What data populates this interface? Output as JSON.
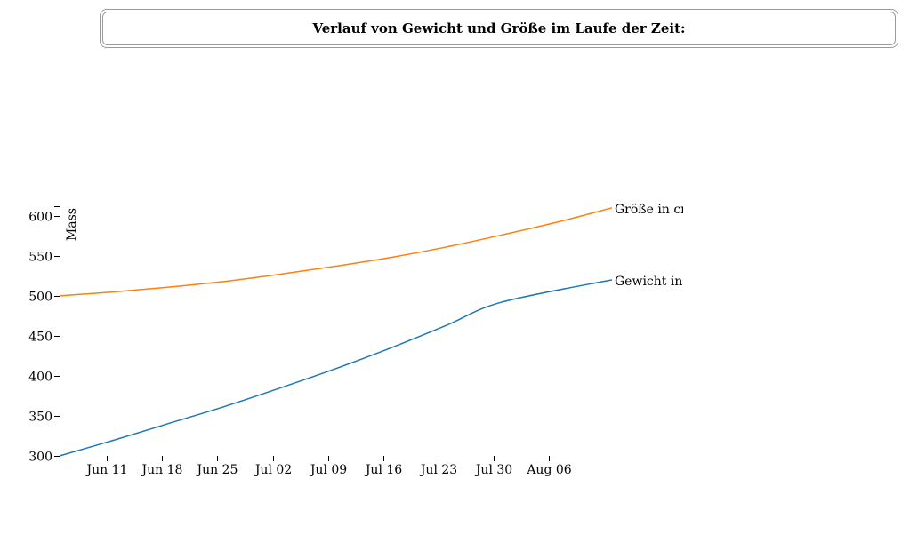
{
  "title": "Verlauf von Gewicht und Größe im Laufe der Zeit:",
  "chart_data": {
    "type": "line",
    "ylabel": "Mass",
    "xlabel": "",
    "ylim": [
      300,
      612
    ],
    "xlim": [
      "2016-06-05",
      "2016-08-14"
    ],
    "y_ticks": [
      300,
      350,
      400,
      450,
      500,
      550,
      600
    ],
    "x_ticks": [
      "2016-06-11",
      "2016-06-18",
      "2016-06-25",
      "2016-07-02",
      "2016-07-09",
      "2016-07-16",
      "2016-07-23",
      "2016-07-30",
      "2016-08-06"
    ],
    "x_tick_labels": [
      "Jun 11",
      "Jun 18",
      "Jun 25",
      "Jul 02",
      "Jul 09",
      "Jul 16",
      "Jul 23",
      "Jul 30",
      "Aug 06"
    ],
    "x": [
      "2016-06-05",
      "2016-06-12",
      "2016-06-19",
      "2016-06-26",
      "2016-07-03",
      "2016-07-10",
      "2016-07-17",
      "2016-07-24",
      "2016-07-31",
      "2016-08-07",
      "2016-08-14"
    ],
    "series": [
      {
        "name": "Größe in cm",
        "color": "#ff7f0e",
        "values": [
          500,
          505,
          511,
          518,
          527,
          537,
          548,
          561,
          576,
          592,
          610
        ]
      },
      {
        "name": "Gewicht in g",
        "color": "#1f77b4",
        "values": [
          300,
          320,
          341,
          362,
          385,
          409,
          435,
          463,
          492,
          520,
          520
        ]
      }
    ],
    "grid": false,
    "legend": "inline-end-of-line"
  }
}
